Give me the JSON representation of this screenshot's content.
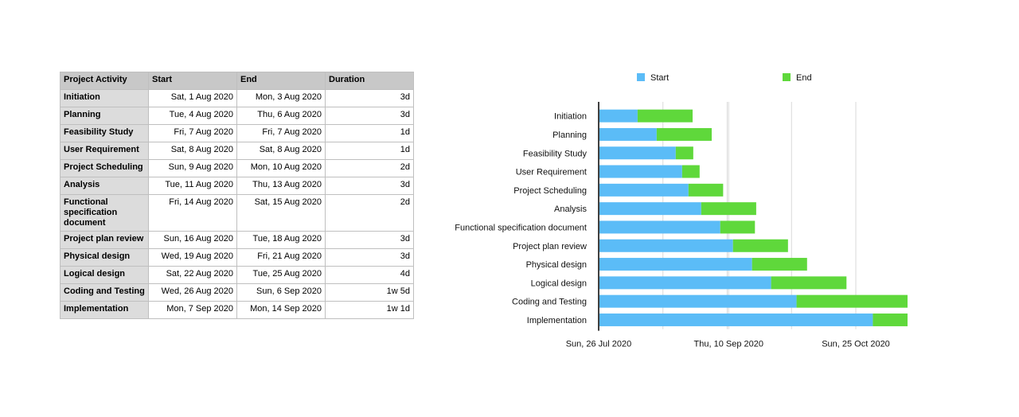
{
  "table": {
    "headers": [
      "Project Activity",
      "Start",
      "End",
      "Duration"
    ],
    "rows": [
      {
        "activity": "Initiation",
        "start": "Sat, 1 Aug 2020",
        "end": "Mon, 3 Aug 2020",
        "duration": "3d"
      },
      {
        "activity": "Planning",
        "start": "Tue, 4 Aug 2020",
        "end": "Thu, 6 Aug 2020",
        "duration": "3d"
      },
      {
        "activity": "Feasibility Study",
        "start": "Fri, 7 Aug 2020",
        "end": "Fri, 7 Aug 2020",
        "duration": "1d"
      },
      {
        "activity": "User Requirement",
        "start": "Sat, 8 Aug 2020",
        "end": "Sat, 8 Aug 2020",
        "duration": "1d"
      },
      {
        "activity": "Project Scheduling",
        "start": "Sun, 9 Aug 2020",
        "end": "Mon, 10 Aug 2020",
        "duration": "2d"
      },
      {
        "activity": "Analysis",
        "start": "Tue, 11 Aug 2020",
        "end": "Thu, 13 Aug 2020",
        "duration": "3d"
      },
      {
        "activity": "Functional specification document",
        "start": "Fri, 14 Aug 2020",
        "end": "Sat, 15 Aug 2020",
        "duration": "2d"
      },
      {
        "activity": "Project plan review",
        "start": "Sun, 16 Aug 2020",
        "end": "Tue, 18 Aug 2020",
        "duration": "3d"
      },
      {
        "activity": "Physical design",
        "start": "Wed, 19 Aug 2020",
        "end": "Fri, 21 Aug 2020",
        "duration": "3d"
      },
      {
        "activity": "Logical design",
        "start": "Sat, 22 Aug 2020",
        "end": "Tue, 25 Aug 2020",
        "duration": "4d"
      },
      {
        "activity": "Coding and Testing",
        "start": "Wed, 26 Aug 2020",
        "end": "Sun, 6 Sep 2020",
        "duration": "1w 5d"
      },
      {
        "activity": "Implementation",
        "start": "Mon, 7 Sep 2020",
        "end": "Mon, 14 Sep 2020",
        "duration": "1w 1d"
      }
    ]
  },
  "chart_data": {
    "type": "bar",
    "orientation": "horizontal",
    "stacked": true,
    "categories": [
      "Initiation",
      "Planning",
      "Feasibility Study",
      "User Requirement",
      "Project Scheduling",
      "Analysis",
      "Functional specification document",
      "Project plan review",
      "Physical design",
      "Logical design",
      "Coding and Testing",
      "Implementation"
    ],
    "series": [
      {
        "name": "Start",
        "color": "#5bbcf7",
        "values": [
          "2020-08-01",
          "2020-08-04",
          "2020-08-07",
          "2020-08-08",
          "2020-08-09",
          "2020-08-11",
          "2020-08-14",
          "2020-08-16",
          "2020-08-19",
          "2020-08-22",
          "2020-08-26",
          "2020-09-07"
        ]
      },
      {
        "name": "End",
        "color": "#5fd83b",
        "values": [
          "2020-08-03",
          "2020-08-06",
          "2020-08-07",
          "2020-08-08",
          "2020-08-10",
          "2020-08-13",
          "2020-08-15",
          "2020-08-18",
          "2020-08-21",
          "2020-08-25",
          "2020-09-06",
          "2020-09-14"
        ]
      }
    ],
    "xlim": [
      "2020-07-26",
      "2020-10-25"
    ],
    "xticks": [
      "2020-07-26",
      "2020-09-10",
      "2020-10-25"
    ],
    "xtick_labels": [
      "Sun, 26 Jul 2020",
      "Thu, 10 Sep 2020",
      "Sun, 25 Oct 2020"
    ],
    "legend_position": "top",
    "grid": true
  }
}
